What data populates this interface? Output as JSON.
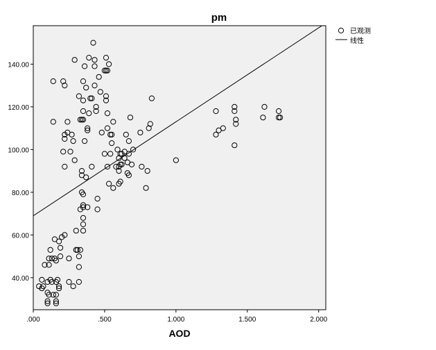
{
  "chart_data": {
    "type": "scatter",
    "title": "pm",
    "xlabel": "AOD",
    "ylabel": "",
    "xlim": [
      0,
      2.05
    ],
    "ylim": [
      25,
      158
    ],
    "x_ticks": [
      0,
      0.5,
      1.0,
      1.5,
      2.0
    ],
    "x_tick_labels": [
      ".000",
      ".500",
      "1.000",
      "1.500",
      "2.000"
    ],
    "y_ticks": [
      40,
      60,
      80,
      100,
      120,
      140
    ],
    "y_tick_labels": [
      "40.00",
      "60.00",
      "80.00",
      "100.00",
      "120.00",
      "140.00"
    ],
    "grid": false,
    "legend_position": "top-right",
    "colors": {
      "plot_background": "#f0f0f0",
      "marker": "#000000",
      "fit_line": "#000000"
    },
    "legend": {
      "observed_label": "已观测",
      "fit_label": "线性"
    },
    "fit_line": {
      "intercept": 69,
      "slope": 44
    },
    "points": [
      [
        0.04,
        36
      ],
      [
        0.06,
        39
      ],
      [
        0.06,
        35
      ],
      [
        0.07,
        36
      ],
      [
        0.08,
        46
      ],
      [
        0.1,
        29
      ],
      [
        0.1,
        28
      ],
      [
        0.1,
        33
      ],
      [
        0.1,
        38
      ],
      [
        0.11,
        49
      ],
      [
        0.11,
        32
      ],
      [
        0.11,
        46
      ],
      [
        0.12,
        53
      ],
      [
        0.12,
        39
      ],
      [
        0.13,
        38
      ],
      [
        0.13,
        49
      ],
      [
        0.14,
        32
      ],
      [
        0.14,
        132
      ],
      [
        0.14,
        113
      ],
      [
        0.15,
        58
      ],
      [
        0.15,
        49
      ],
      [
        0.16,
        48
      ],
      [
        0.16,
        28
      ],
      [
        0.16,
        29
      ],
      [
        0.16,
        32
      ],
      [
        0.16,
        38
      ],
      [
        0.17,
        39
      ],
      [
        0.18,
        35
      ],
      [
        0.18,
        36
      ],
      [
        0.18,
        57
      ],
      [
        0.19,
        54
      ],
      [
        0.19,
        50
      ],
      [
        0.2,
        59
      ],
      [
        0.21,
        99
      ],
      [
        0.21,
        132
      ],
      [
        0.22,
        130
      ],
      [
        0.22,
        107
      ],
      [
        0.22,
        92
      ],
      [
        0.22,
        60
      ],
      [
        0.22,
        105
      ],
      [
        0.24,
        113
      ],
      [
        0.24,
        108
      ],
      [
        0.25,
        38
      ],
      [
        0.25,
        49
      ],
      [
        0.26,
        99
      ],
      [
        0.27,
        107
      ],
      [
        0.28,
        36
      ],
      [
        0.28,
        104
      ],
      [
        0.29,
        142
      ],
      [
        0.29,
        95
      ],
      [
        0.3,
        62
      ],
      [
        0.3,
        53
      ],
      [
        0.31,
        53
      ],
      [
        0.32,
        125
      ],
      [
        0.32,
        38
      ],
      [
        0.32,
        45
      ],
      [
        0.32,
        50
      ],
      [
        0.33,
        114
      ],
      [
        0.33,
        53
      ],
      [
        0.33,
        72
      ],
      [
        0.34,
        88
      ],
      [
        0.34,
        90
      ],
      [
        0.34,
        80
      ],
      [
        0.34,
        114
      ],
      [
        0.35,
        132
      ],
      [
        0.35,
        123
      ],
      [
        0.35,
        118
      ],
      [
        0.35,
        114
      ],
      [
        0.35,
        73
      ],
      [
        0.35,
        74
      ],
      [
        0.35,
        68
      ],
      [
        0.35,
        65
      ],
      [
        0.35,
        62
      ],
      [
        0.35,
        79
      ],
      [
        0.36,
        139
      ],
      [
        0.36,
        104
      ],
      [
        0.37,
        129
      ],
      [
        0.37,
        87
      ],
      [
        0.38,
        110
      ],
      [
        0.38,
        109
      ],
      [
        0.38,
        73
      ],
      [
        0.39,
        117
      ],
      [
        0.39,
        143
      ],
      [
        0.4,
        124
      ],
      [
        0.41,
        124
      ],
      [
        0.41,
        92
      ],
      [
        0.42,
        150
      ],
      [
        0.43,
        142
      ],
      [
        0.43,
        139
      ],
      [
        0.43,
        130
      ],
      [
        0.44,
        118
      ],
      [
        0.44,
        120
      ],
      [
        0.45,
        77
      ],
      [
        0.45,
        72
      ],
      [
        0.46,
        134
      ],
      [
        0.47,
        127
      ],
      [
        0.48,
        108
      ],
      [
        0.5,
        137
      ],
      [
        0.5,
        98
      ],
      [
        0.51,
        143
      ],
      [
        0.51,
        137
      ],
      [
        0.51,
        125
      ],
      [
        0.51,
        123
      ],
      [
        0.52,
        137
      ],
      [
        0.52,
        117
      ],
      [
        0.52,
        110
      ],
      [
        0.52,
        92
      ],
      [
        0.53,
        140
      ],
      [
        0.53,
        84
      ],
      [
        0.54,
        107
      ],
      [
        0.54,
        98
      ],
      [
        0.55,
        107
      ],
      [
        0.55,
        103
      ],
      [
        0.56,
        113
      ],
      [
        0.56,
        82
      ],
      [
        0.58,
        92
      ],
      [
        0.59,
        100
      ],
      [
        0.6,
        90
      ],
      [
        0.6,
        84
      ],
      [
        0.6,
        92
      ],
      [
        0.6,
        96
      ],
      [
        0.61,
        93
      ],
      [
        0.61,
        98
      ],
      [
        0.61,
        85
      ],
      [
        0.62,
        93
      ],
      [
        0.62,
        98
      ],
      [
        0.64,
        96
      ],
      [
        0.64,
        99
      ],
      [
        0.65,
        107
      ],
      [
        0.66,
        89
      ],
      [
        0.66,
        94
      ],
      [
        0.67,
        98
      ],
      [
        0.67,
        104
      ],
      [
        0.67,
        88
      ],
      [
        0.68,
        115
      ],
      [
        0.69,
        93
      ],
      [
        0.7,
        100
      ],
      [
        0.75,
        108
      ],
      [
        0.76,
        92
      ],
      [
        0.79,
        82
      ],
      [
        0.8,
        90
      ],
      [
        0.81,
        110
      ],
      [
        0.82,
        112
      ],
      [
        0.83,
        124
      ],
      [
        1.0,
        95
      ],
      [
        1.28,
        118
      ],
      [
        1.28,
        107
      ],
      [
        1.3,
        109
      ],
      [
        1.33,
        110
      ],
      [
        1.41,
        102
      ],
      [
        1.41,
        120
      ],
      [
        1.41,
        118
      ],
      [
        1.42,
        114
      ],
      [
        1.42,
        112
      ],
      [
        1.61,
        115
      ],
      [
        1.62,
        120
      ],
      [
        1.72,
        118
      ],
      [
        1.72,
        115
      ],
      [
        1.73,
        115
      ]
    ]
  }
}
